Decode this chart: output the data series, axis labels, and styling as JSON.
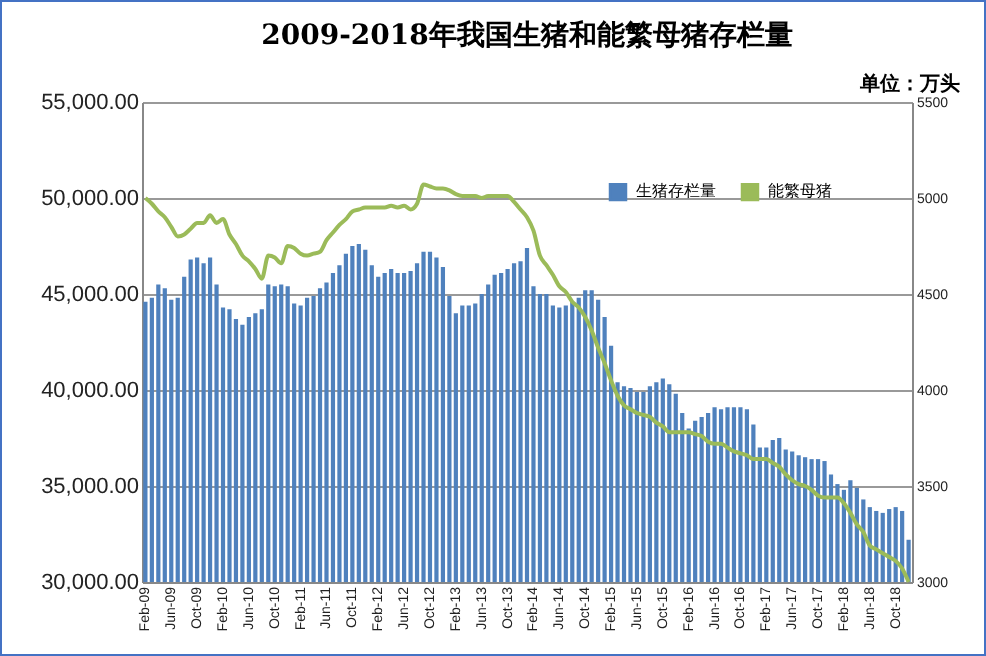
{
  "chart_data": {
    "type": "bar",
    "title": "2009-2018年我国生猪和能繁母猪存栏量",
    "annotations": [
      "单位：万头"
    ],
    "categories": [
      "Feb-09",
      null,
      null,
      null,
      "Jun-09",
      null,
      null,
      null,
      "Oct-09",
      null,
      null,
      null,
      "Feb-10",
      null,
      null,
      null,
      "Jun-10",
      null,
      null,
      null,
      "Oct-10",
      null,
      null,
      null,
      "Feb-11",
      null,
      null,
      null,
      "Jun-11",
      null,
      null,
      null,
      "Oct-11",
      null,
      null,
      null,
      "Feb-12",
      null,
      null,
      null,
      "Jun-12",
      null,
      null,
      null,
      "Oct-12",
      null,
      null,
      null,
      "Feb-13",
      null,
      null,
      null,
      "Jun-13",
      null,
      null,
      null,
      "Oct-13",
      null,
      null,
      null,
      "Feb-14",
      null,
      null,
      null,
      "Jun-14",
      null,
      null,
      null,
      "Oct-14",
      null,
      null,
      null,
      "Feb-15",
      null,
      null,
      null,
      "Jun-15",
      null,
      null,
      null,
      "Oct-15",
      null,
      null,
      null,
      "Feb-16",
      null,
      null,
      null,
      "Jun-16",
      null,
      null,
      null,
      "Oct-16",
      null,
      null,
      null,
      "Feb-17",
      null,
      null,
      null,
      "Jun-17",
      null,
      null,
      null,
      "Oct-17",
      null,
      null,
      null,
      "Feb-18",
      null,
      null,
      null,
      "Jun-18",
      null,
      null,
      null,
      "Oct-18",
      null,
      null
    ],
    "series": [
      {
        "name": "生猪存栏量",
        "color": "#4f81bd",
        "values": [
          44600,
          44800,
          45500,
          45300,
          44700,
          44800,
          45900,
          46800,
          46900,
          46600,
          46900,
          45500,
          44300,
          44200,
          43700,
          43400,
          43800,
          44000,
          44200,
          45500,
          45400,
          45500,
          45400,
          44500,
          44400,
          44800,
          44900,
          45300,
          45600,
          46100,
          46500,
          47100,
          47500,
          47600,
          47300,
          46500,
          45900,
          46100,
          46300,
          46100,
          46100,
          46200,
          46600,
          47200,
          47200,
          46900,
          46400,
          44900,
          44000,
          44400,
          44400,
          44500,
          45000,
          45500,
          46000,
          46100,
          46300,
          46600,
          46700,
          47400,
          45400,
          45000,
          45000,
          44400,
          44300,
          44400,
          44600,
          44800,
          45200,
          45200,
          44700,
          43800,
          42300,
          40400,
          40200,
          40100,
          39900,
          39900,
          40200,
          40400,
          40600,
          40300,
          39800,
          38800,
          38000,
          38400,
          38600,
          38800,
          39100,
          39000,
          39100,
          39100,
          39100,
          39000,
          38200,
          37000,
          37000,
          37400,
          37500,
          36900,
          36800,
          36600,
          36500,
          36400,
          36400,
          36300,
          35600,
          35100,
          34800,
          35300,
          34900,
          34300,
          33900,
          33700,
          33600,
          33800,
          33900,
          33700,
          32200
        ]
      },
      {
        "name": "能繁母猪",
        "type": "line",
        "axis": "y2",
        "color": "#9bbb59",
        "values": [
          5000,
          4970,
          4930,
          4900,
          4850,
          4800,
          4810,
          4840,
          4870,
          4870,
          4910,
          4870,
          4890,
          4810,
          4760,
          4700,
          4670,
          4630,
          4580,
          4700,
          4690,
          4660,
          4750,
          4740,
          4710,
          4700,
          4710,
          4720,
          4780,
          4820,
          4860,
          4890,
          4930,
          4940,
          4950,
          4950,
          4950,
          4950,
          4960,
          4950,
          4960,
          4940,
          4970,
          5070,
          5060,
          5050,
          5050,
          5040,
          5020,
          5010,
          5010,
          5010,
          5000,
          5010,
          5010,
          5010,
          5010,
          4980,
          4940,
          4900,
          4830,
          4700,
          4650,
          4600,
          4540,
          4510,
          4460,
          4430,
          4380,
          4310,
          4220,
          4140,
          4050,
          3970,
          3920,
          3900,
          3880,
          3870,
          3860,
          3830,
          3810,
          3780,
          3780,
          3780,
          3780,
          3770,
          3760,
          3730,
          3720,
          3720,
          3700,
          3680,
          3670,
          3660,
          3640,
          3640,
          3640,
          3620,
          3600,
          3560,
          3530,
          3510,
          3500,
          3480,
          3450,
          3440,
          3440,
          3440,
          3410,
          3360,
          3300,
          3260,
          3190,
          3170,
          3150,
          3130,
          3110,
          3070,
          3000
        ]
      }
    ],
    "ylim": [
      30000,
      55000
    ],
    "yticks": [
      {
        "value": 30000,
        "label": "30,000.00"
      },
      {
        "value": 35000,
        "label": "35,000.00"
      },
      {
        "value": 40000,
        "label": "40,000.00"
      },
      {
        "value": 45000,
        "label": "45,000.00"
      },
      {
        "value": 50000,
        "label": "50,000.00"
      },
      {
        "value": 55000,
        "label": "55,000.00"
      }
    ],
    "y2lim": [
      3000,
      5500
    ],
    "y2ticks": [
      3000,
      3500,
      4000,
      4500,
      5000,
      5500
    ],
    "grid": "y",
    "legend": "top right"
  }
}
